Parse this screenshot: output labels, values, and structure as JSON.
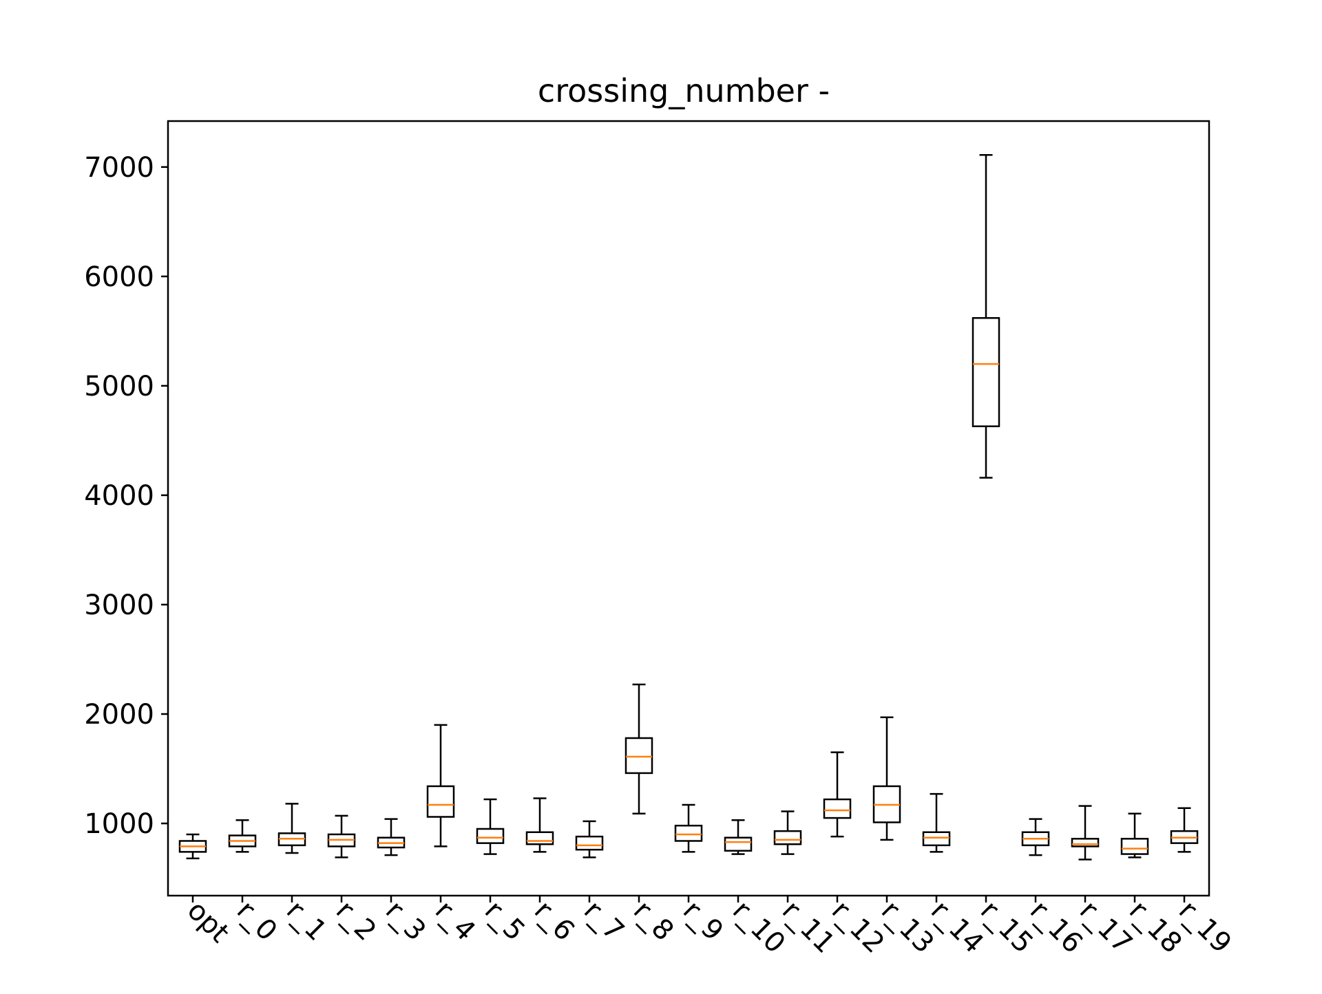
{
  "chart_data": {
    "type": "box",
    "title": "crossing_number -",
    "xlabel": "",
    "ylabel": "",
    "ylim": [
      340,
      7420
    ],
    "yticks": [
      1000,
      2000,
      3000,
      4000,
      5000,
      6000,
      7000
    ],
    "grid": false,
    "legend": "none",
    "colors": {
      "box": "#000000",
      "median": "#ff7f0e",
      "background": "#ffffff"
    },
    "categories": [
      "opt",
      "r_0",
      "r_1",
      "r_2",
      "r_3",
      "r_4",
      "r_5",
      "r_6",
      "r_7",
      "r_8",
      "r_9",
      "r_10",
      "r_11",
      "r_12",
      "r_13",
      "r_14",
      "r_15",
      "r_16",
      "r_17",
      "r_18",
      "r_19"
    ],
    "boxes": [
      {
        "whisker_low": 680,
        "q1": 740,
        "median": 790,
        "q3": 840,
        "whisker_high": 900
      },
      {
        "whisker_low": 740,
        "q1": 790,
        "median": 840,
        "q3": 890,
        "whisker_high": 1030
      },
      {
        "whisker_low": 730,
        "q1": 800,
        "median": 860,
        "q3": 910,
        "whisker_high": 1180
      },
      {
        "whisker_low": 690,
        "q1": 790,
        "median": 850,
        "q3": 900,
        "whisker_high": 1070
      },
      {
        "whisker_low": 710,
        "q1": 780,
        "median": 820,
        "q3": 870,
        "whisker_high": 1040
      },
      {
        "whisker_low": 790,
        "q1": 1060,
        "median": 1170,
        "q3": 1340,
        "whisker_high": 1900
      },
      {
        "whisker_low": 720,
        "q1": 820,
        "median": 870,
        "q3": 950,
        "whisker_high": 1220
      },
      {
        "whisker_low": 740,
        "q1": 810,
        "median": 840,
        "q3": 920,
        "whisker_high": 1230
      },
      {
        "whisker_low": 690,
        "q1": 760,
        "median": 800,
        "q3": 880,
        "whisker_high": 1020
      },
      {
        "whisker_low": 1090,
        "q1": 1460,
        "median": 1610,
        "q3": 1780,
        "whisker_high": 2270
      },
      {
        "whisker_low": 740,
        "q1": 840,
        "median": 900,
        "q3": 980,
        "whisker_high": 1170
      },
      {
        "whisker_low": 720,
        "q1": 750,
        "median": 830,
        "q3": 870,
        "whisker_high": 1030
      },
      {
        "whisker_low": 720,
        "q1": 810,
        "median": 850,
        "q3": 930,
        "whisker_high": 1110
      },
      {
        "whisker_low": 880,
        "q1": 1050,
        "median": 1120,
        "q3": 1220,
        "whisker_high": 1650
      },
      {
        "whisker_low": 850,
        "q1": 1010,
        "median": 1170,
        "q3": 1340,
        "whisker_high": 1970
      },
      {
        "whisker_low": 740,
        "q1": 800,
        "median": 870,
        "q3": 920,
        "whisker_high": 1270
      },
      {
        "whisker_low": 4160,
        "q1": 4630,
        "median": 5200,
        "q3": 5620,
        "whisker_high": 7110
      },
      {
        "whisker_low": 710,
        "q1": 800,
        "median": 860,
        "q3": 920,
        "whisker_high": 1040
      },
      {
        "whisker_low": 670,
        "q1": 790,
        "median": 810,
        "q3": 860,
        "whisker_high": 1160
      },
      {
        "whisker_low": 690,
        "q1": 720,
        "median": 770,
        "q3": 860,
        "whisker_high": 1090
      },
      {
        "whisker_low": 740,
        "q1": 820,
        "median": 870,
        "q3": 930,
        "whisker_high": 1140
      }
    ]
  }
}
